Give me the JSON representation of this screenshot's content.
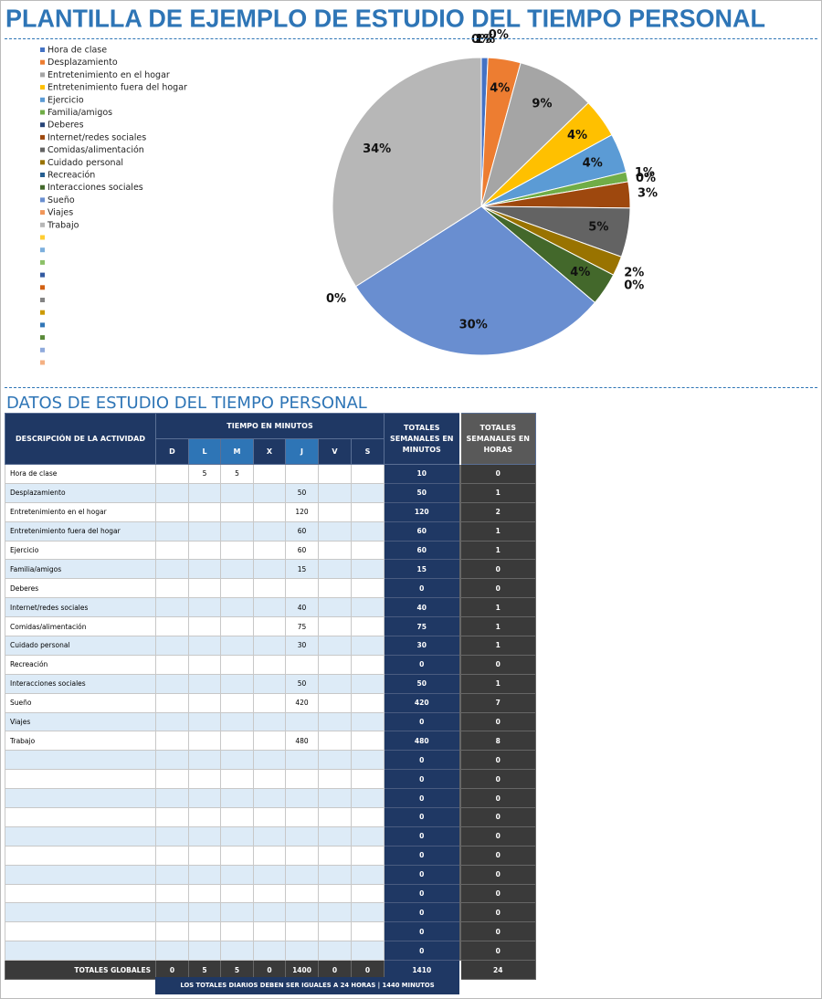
{
  "title": "PLANTILLA DE EJEMPLO DE ESTUDIO DEL TIEMPO PERSONAL",
  "chart_data": {
    "type": "pie",
    "categories": [
      "Hora de clase",
      "Desplazamiento",
      "Entretenimiento en el hogar",
      "Entretenimiento fuera del hogar",
      "Ejercicio",
      "Familia/amigos",
      "Deberes",
      "Internet/redes sociales",
      "Comidas/alimentación",
      "Cuidado personal",
      "Recreación",
      "Interacciones sociales",
      "Sueño",
      "Viajes",
      "Trabajo",
      null,
      null,
      null,
      null,
      null,
      null,
      null,
      null,
      null,
      null,
      null
    ],
    "values": [
      0.71,
      3.55,
      8.51,
      4.26,
      4.26,
      1.06,
      0,
      2.84,
      5.32,
      2.13,
      0,
      3.55,
      29.79,
      0,
      34.04,
      0,
      0,
      0,
      0,
      0,
      0,
      0,
      0,
      0,
      0,
      0
    ],
    "value_labels": [
      "1%",
      "4%",
      "9%",
      "4%",
      "4%",
      "1%",
      "0%",
      "3%",
      "5%",
      "2%",
      "0%",
      "4%",
      "30%",
      "0%",
      "34%",
      "0%",
      "0%",
      null,
      null,
      null,
      null,
      null,
      null,
      null,
      null,
      null
    ],
    "colors": [
      "#4472c4",
      "#ed7d31",
      "#a5a5a5",
      "#ffc000",
      "#5b9bd5",
      "#70ad47",
      "#264478",
      "#9e480e",
      "#636363",
      "#997300",
      "#255e91",
      "#43682b",
      "#698ed0",
      "#f1975a",
      "#b7b7b7",
      "#ffcd33",
      "#7cafdd",
      "#8cc168",
      "#335aa1",
      "#d26012",
      "#848484",
      "#cc9a00",
      "#3277b7",
      "#5a8a39",
      "#8faadc",
      "#f4b183"
    ]
  },
  "section_title": "DATOS DE ESTUDIO DEL TIEMPO PERSONAL",
  "table": {
    "header": {
      "activity": "DESCRIPCIÓN DE LA ACTIVIDAD",
      "minutes": "TIEMPO EN MINUTOS",
      "days": [
        "D",
        "L",
        "M",
        "X",
        "J",
        "V",
        "S"
      ],
      "weekly_minutes": "TOTALES SEMANALES EN MINUTOS",
      "weekly_hours": "TOTALES SEMANALES EN HORAS"
    },
    "rows": [
      [
        "Hora de clase",
        null,
        5,
        5,
        null,
        null,
        null,
        null,
        10,
        0
      ],
      [
        "Desplazamiento",
        null,
        null,
        null,
        null,
        50,
        null,
        null,
        50,
        1
      ],
      [
        "Entretenimiento en el hogar",
        null,
        null,
        null,
        null,
        120,
        null,
        null,
        120,
        2
      ],
      [
        "Entretenimiento fuera del hogar",
        null,
        null,
        null,
        null,
        60,
        null,
        null,
        60,
        1
      ],
      [
        "Ejercicio",
        null,
        null,
        null,
        null,
        60,
        null,
        null,
        60,
        1
      ],
      [
        "Familia/amigos",
        null,
        null,
        null,
        null,
        15,
        null,
        null,
        15,
        0
      ],
      [
        "Deberes",
        null,
        null,
        null,
        null,
        null,
        null,
        null,
        0,
        0
      ],
      [
        "Internet/redes sociales",
        null,
        null,
        null,
        null,
        40,
        null,
        null,
        40,
        1
      ],
      [
        "Comidas/alimentación",
        null,
        null,
        null,
        null,
        75,
        null,
        null,
        75,
        1
      ],
      [
        "Cuidado personal",
        null,
        null,
        null,
        null,
        30,
        null,
        null,
        30,
        1
      ],
      [
        "Recreación",
        null,
        null,
        null,
        null,
        null,
        null,
        null,
        0,
        0
      ],
      [
        "Interacciones sociales",
        null,
        null,
        null,
        null,
        50,
        null,
        null,
        50,
        1
      ],
      [
        "Sueño",
        null,
        null,
        null,
        null,
        420,
        null,
        null,
        420,
        7
      ],
      [
        "Viajes",
        null,
        null,
        null,
        null,
        null,
        null,
        null,
        0,
        0
      ],
      [
        "Trabajo",
        null,
        null,
        null,
        null,
        480,
        null,
        null,
        480,
        8
      ],
      [
        null,
        null,
        null,
        null,
        null,
        null,
        null,
        null,
        0,
        0
      ],
      [
        null,
        null,
        null,
        null,
        null,
        null,
        null,
        null,
        0,
        0
      ],
      [
        null,
        null,
        null,
        null,
        null,
        null,
        null,
        null,
        0,
        0
      ],
      [
        null,
        null,
        null,
        null,
        null,
        null,
        null,
        null,
        0,
        0
      ],
      [
        null,
        null,
        null,
        null,
        null,
        null,
        null,
        null,
        0,
        0
      ],
      [
        null,
        null,
        null,
        null,
        null,
        null,
        null,
        null,
        0,
        0
      ],
      [
        null,
        null,
        null,
        null,
        null,
        null,
        null,
        null,
        0,
        0
      ],
      [
        null,
        null,
        null,
        null,
        null,
        null,
        null,
        null,
        0,
        0
      ],
      [
        null,
        null,
        null,
        null,
        null,
        null,
        null,
        null,
        0,
        0
      ],
      [
        null,
        null,
        null,
        null,
        null,
        null,
        null,
        null,
        0,
        0
      ],
      [
        null,
        null,
        null,
        null,
        null,
        null,
        null,
        null,
        0,
        0
      ]
    ],
    "footer": [
      "TOTALES GLOBALES",
      0,
      5,
      5,
      0,
      1400,
      0,
      0,
      1410,
      24
    ],
    "note": "LOS TOTALES DIARIOS DEBEN SER IGUALES A 24 HORAS | 1440 MINUTOS"
  }
}
